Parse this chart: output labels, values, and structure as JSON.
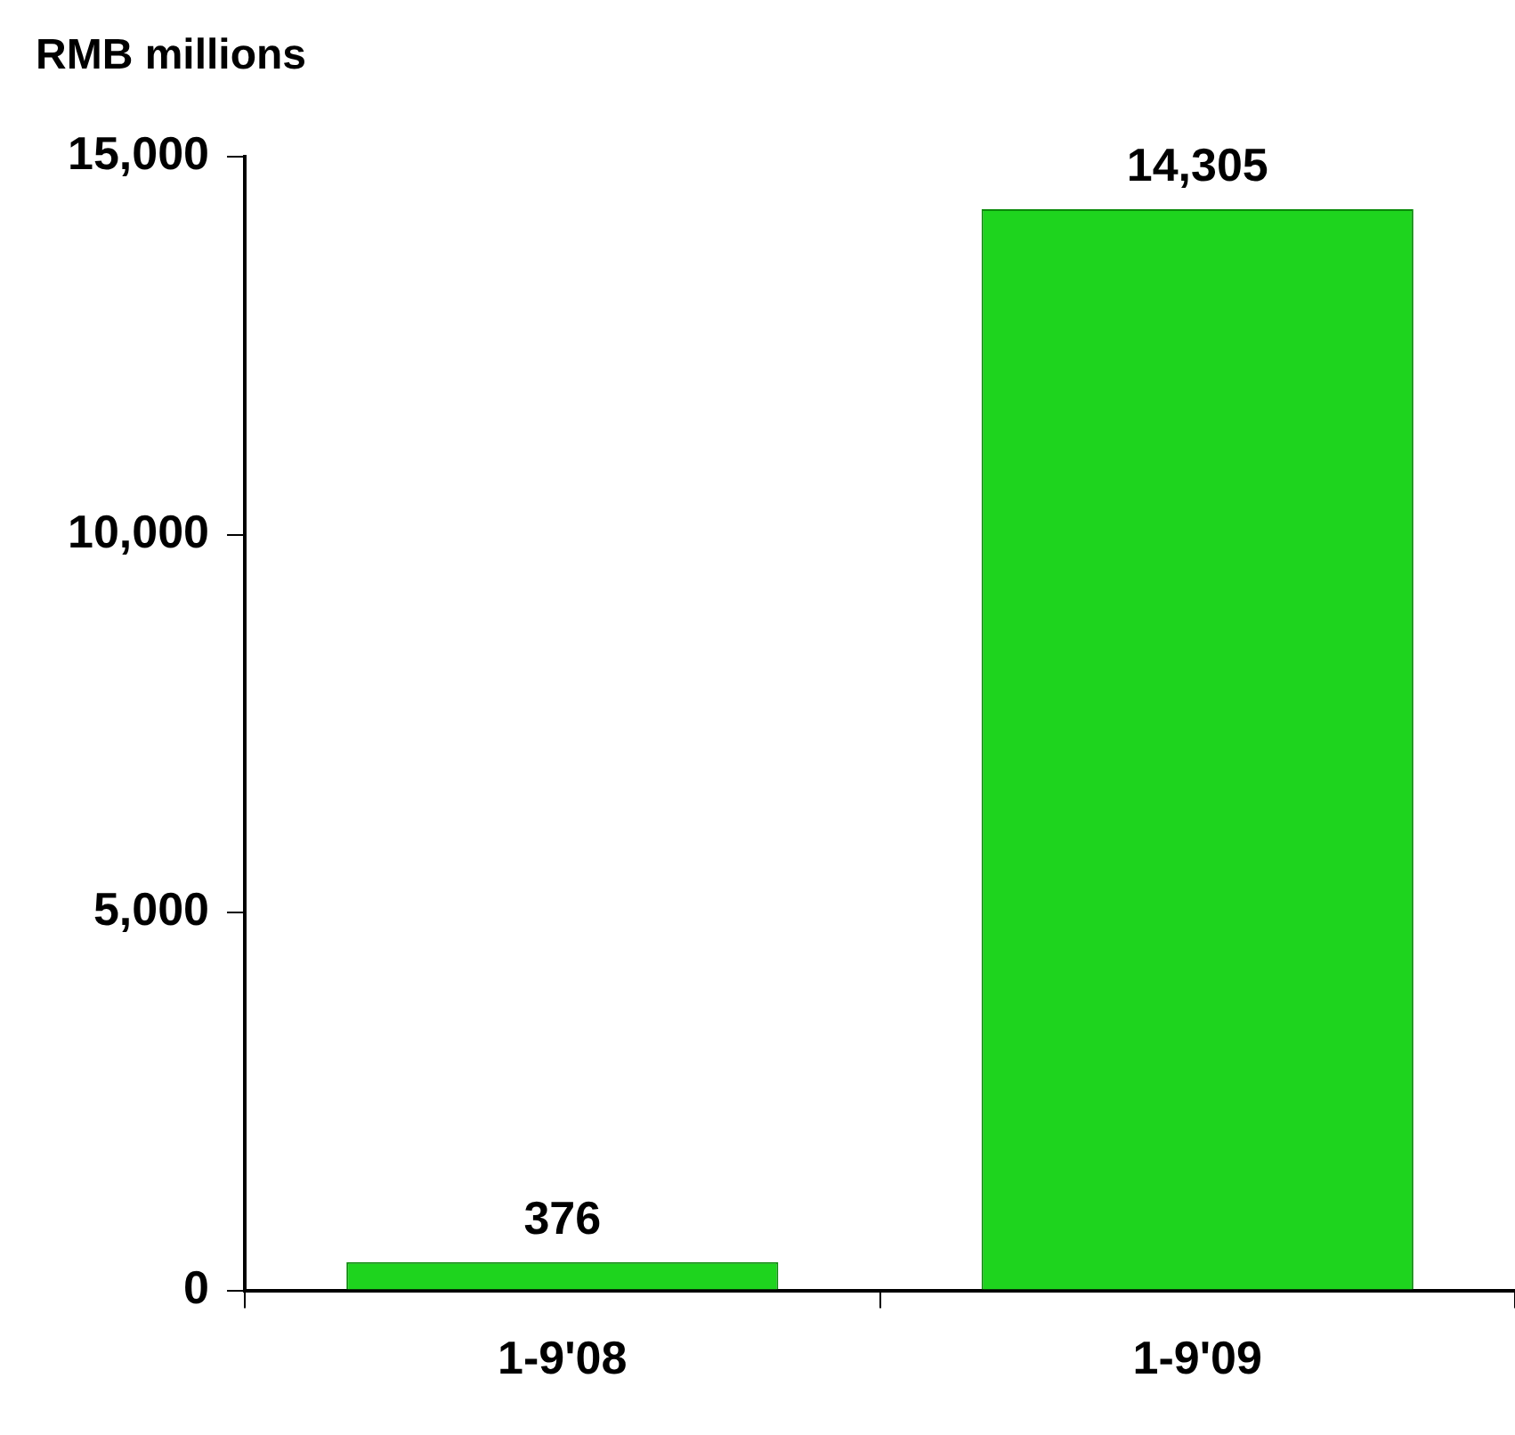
{
  "chart_data": {
    "type": "bar",
    "ylabel": "RMB millions",
    "categories": [
      "1-9'08",
      "1-9'09"
    ],
    "values": [
      376,
      14305
    ],
    "color": "#1ed41e",
    "ylim": [
      0,
      15000
    ],
    "yticks": [
      {
        "value": 0,
        "label": "0"
      },
      {
        "value": 5000,
        "label": "5,000"
      },
      {
        "value": 10000,
        "label": "10,000"
      },
      {
        "value": 15000,
        "label": "15,000"
      }
    ],
    "grid": false,
    "legend": false,
    "value_labels": [
      "376",
      "14,305"
    ]
  }
}
